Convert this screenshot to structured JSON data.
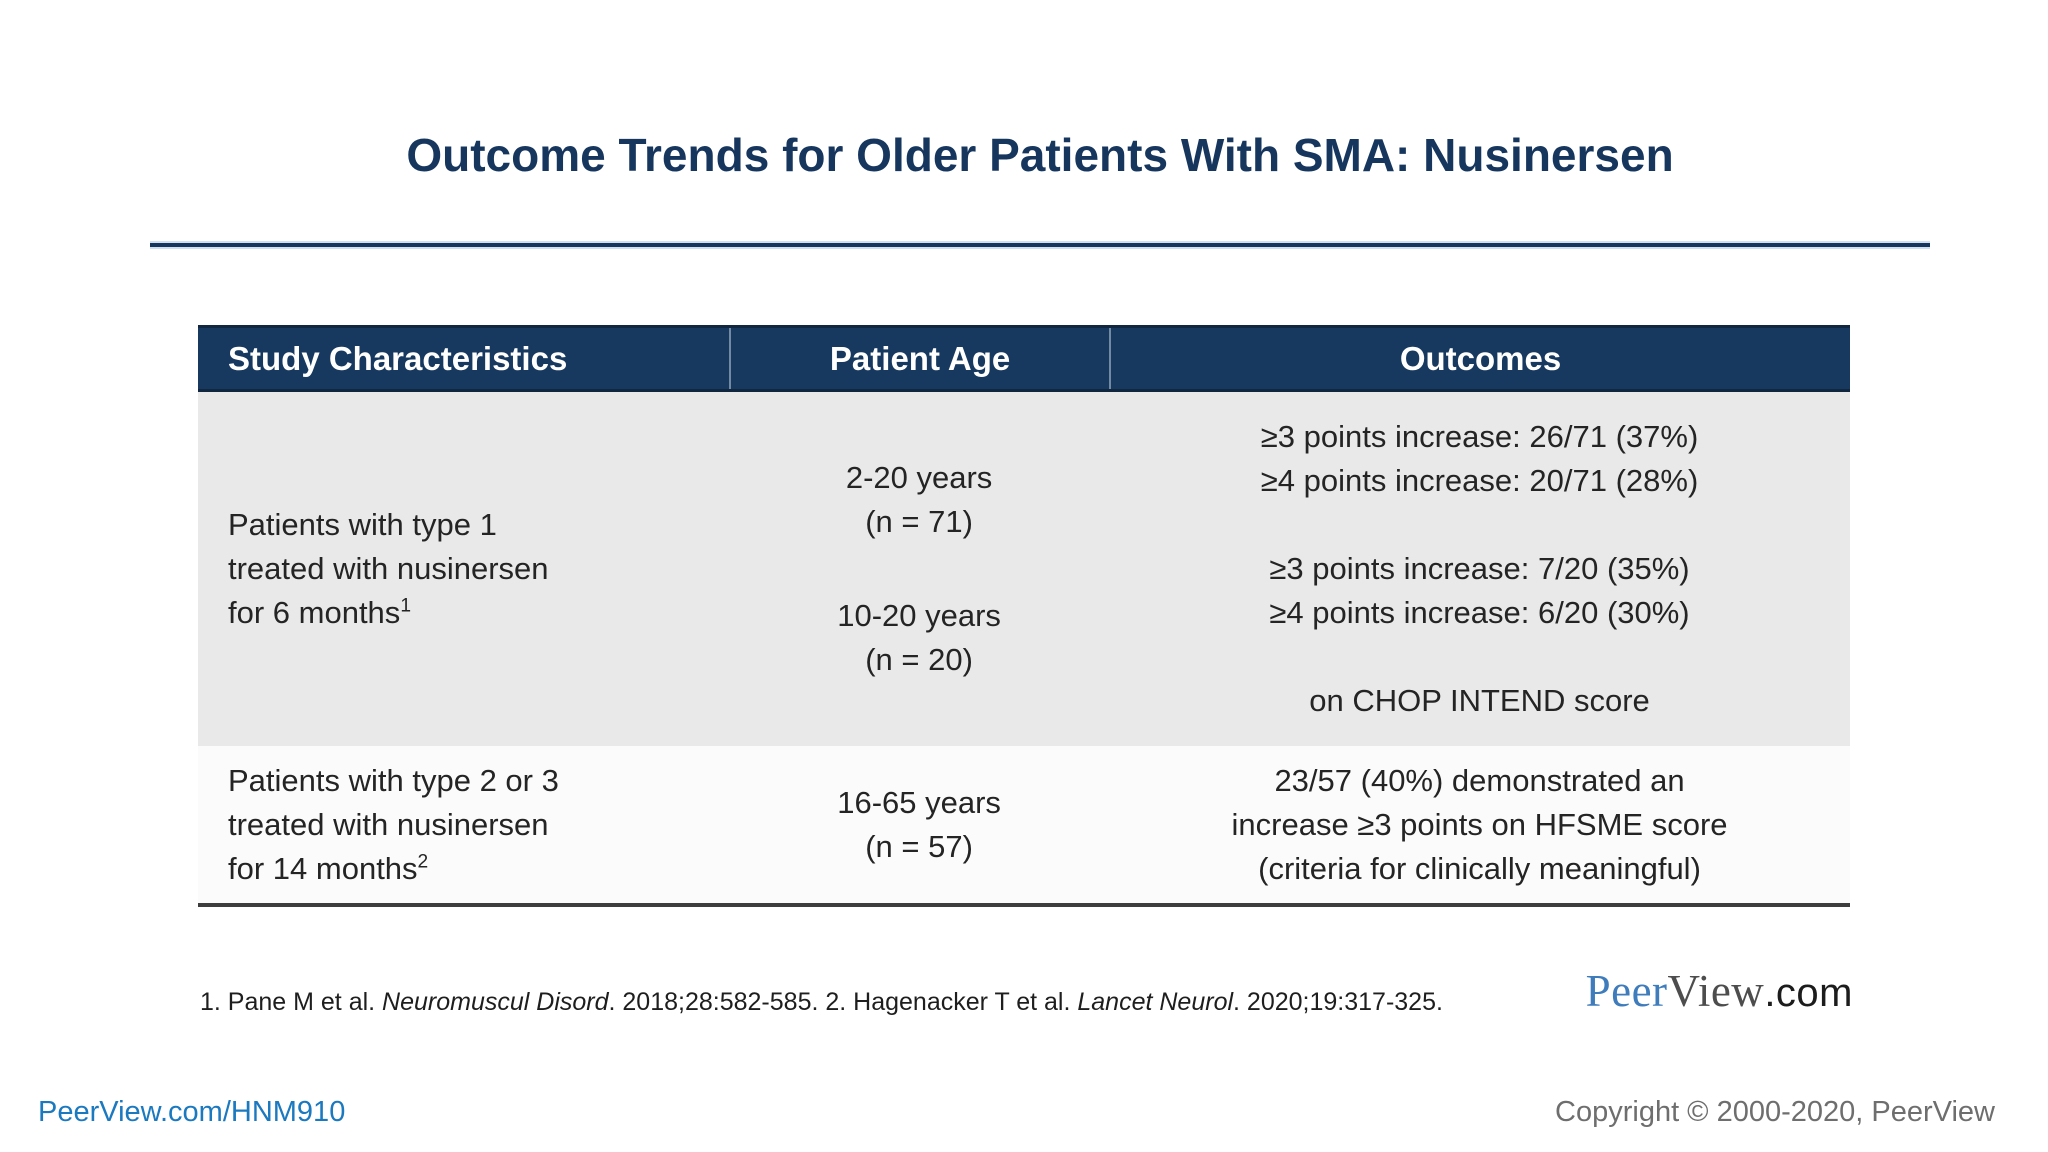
{
  "colors": {
    "navy": "#17395f",
    "navy-text": "#16365e",
    "link": "#1b79c0",
    "row-gray": "#e9e9e9"
  },
  "title": "Outcome Trends for Older Patients With SMA: Nusinersen",
  "table": {
    "headers": [
      "Study Characteristics",
      "Patient Age",
      "Outcomes"
    ],
    "rows": [
      {
        "study": [
          "Patients with type 1",
          "treated with nusinersen",
          "for 6 months"
        ],
        "study_ref": "1",
        "ages": [
          {
            "range": "2-20 years",
            "n": "(n = 71)"
          },
          {
            "range": "10-20 years",
            "n": "(n = 20)"
          }
        ],
        "outcome_groups": [
          [
            "≥3 points increase: 26/71 (37%)",
            "≥4 points increase: 20/71 (28%)"
          ],
          [
            "≥3 points increase: 7/20 (35%)",
            "≥4 points increase: 6/20 (30%)"
          ]
        ],
        "outcome_note": "on CHOP INTEND score"
      },
      {
        "study": [
          "Patients with type 2 or 3",
          "treated with nusinersen",
          "for 14 months"
        ],
        "study_ref": "2",
        "ages": [
          {
            "range": "16-65 years",
            "n": "(n = 57)"
          }
        ],
        "outcome_lines": [
          "23/57 (40%) demonstrated an",
          "increase ≥3 points on HFSME score",
          "(criteria for clinically meaningful)"
        ]
      }
    ]
  },
  "references": {
    "segments": [
      {
        "text": "1. Pane M et al. "
      },
      {
        "text": "Neuromuscul Disord",
        "italic": true
      },
      {
        "text": ". 2018;28:582-585. 2. Hagenacker T et al. "
      },
      {
        "text": "Lancet Neurol",
        "italic": true
      },
      {
        "text": ". 2020;19:317-325."
      }
    ]
  },
  "logo": {
    "peer": "Peer",
    "view": "View",
    "com": ".com"
  },
  "footer": {
    "link": "PeerView.com/HNM910",
    "copyright": "Copyright © 2000-2020, PeerView"
  }
}
